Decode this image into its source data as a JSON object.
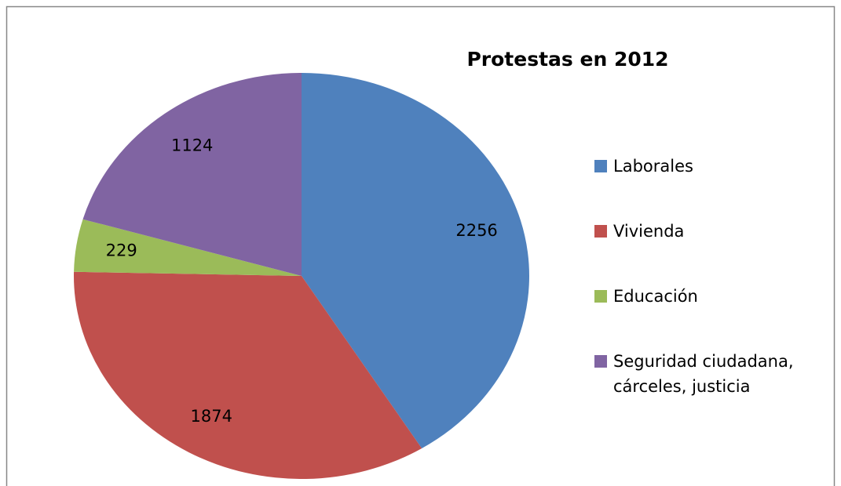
{
  "chart_data": {
    "type": "pie",
    "title": "Protestas en 2012",
    "categories": [
      "Laborales",
      "Vivienda",
      "Educación",
      "Seguridad ciudadana, cárceles, justicia"
    ],
    "values": [
      2256,
      1874,
      229,
      1124
    ],
    "colors": [
      "#4f81bd",
      "#c0504d",
      "#9bbb59",
      "#8064a2"
    ],
    "legend": "right"
  }
}
